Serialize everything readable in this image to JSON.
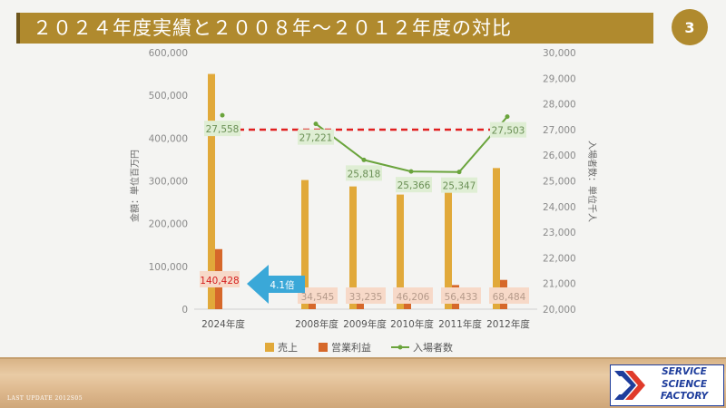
{
  "slide": {
    "title": "２０２４年度実績と２００８年～２０１２年度の対比",
    "page_number": "3",
    "last_update": "LAST UPDATE 2012S05",
    "logo": {
      "line1": "SERVICE",
      "line2": "SCIENCE",
      "line3": "FACTORY"
    }
  },
  "colors": {
    "title_bar": "#b08a2e",
    "sales": "#e1a93a",
    "operating_profit": "#d6682a",
    "visitors": "#6aa43c",
    "trend_arrow": "#e02020",
    "callout_arrow": "#3aa8d8",
    "profit_label_bg": "#f7d9c8",
    "visitors_label_bg": "#dfeed4"
  },
  "chart_data": {
    "type": "bar",
    "categories": [
      "2024年度",
      "2008年度",
      "2009年度",
      "2010年度",
      "2011年度",
      "2012年度"
    ],
    "series": [
      {
        "name": "売上",
        "axis": "left",
        "type": "bar",
        "values": [
          550000,
          302000,
          287000,
          268000,
          300000,
          330000
        ]
      },
      {
        "name": "営業利益",
        "axis": "left",
        "type": "bar",
        "values": [
          140428,
          34545,
          33235,
          46206,
          56433,
          68484
        ],
        "data_labels": [
          "140,428",
          "34,545",
          "33,235",
          "46,206",
          "56,433",
          "68,484"
        ]
      },
      {
        "name": "入場者数",
        "axis": "right",
        "type": "line",
        "values": [
          27558,
          27221,
          25818,
          25366,
          25347,
          27503
        ],
        "data_labels": [
          "27,558",
          "27,221",
          "25,818",
          "25,366",
          "25,347",
          "27,503"
        ]
      }
    ],
    "left_axis": {
      "label": "金額：単位百万円",
      "min": 0,
      "max": 600000,
      "ticks": [
        "0",
        "100,000",
        "200,000",
        "300,000",
        "400,000",
        "500,000",
        "600,000"
      ]
    },
    "right_axis": {
      "label": "入場者数：単位千人",
      "min": 20000,
      "max": 30000,
      "ticks": [
        "20,000",
        "21,000",
        "22,000",
        "23,000",
        "24,000",
        "25,000",
        "26,000",
        "27,000",
        "28,000",
        "29,000",
        "30,000"
      ]
    },
    "callout": "4.1倍",
    "legend": {
      "position": "bottom",
      "items": [
        "売上",
        "営業利益",
        "入場者数"
      ]
    }
  }
}
